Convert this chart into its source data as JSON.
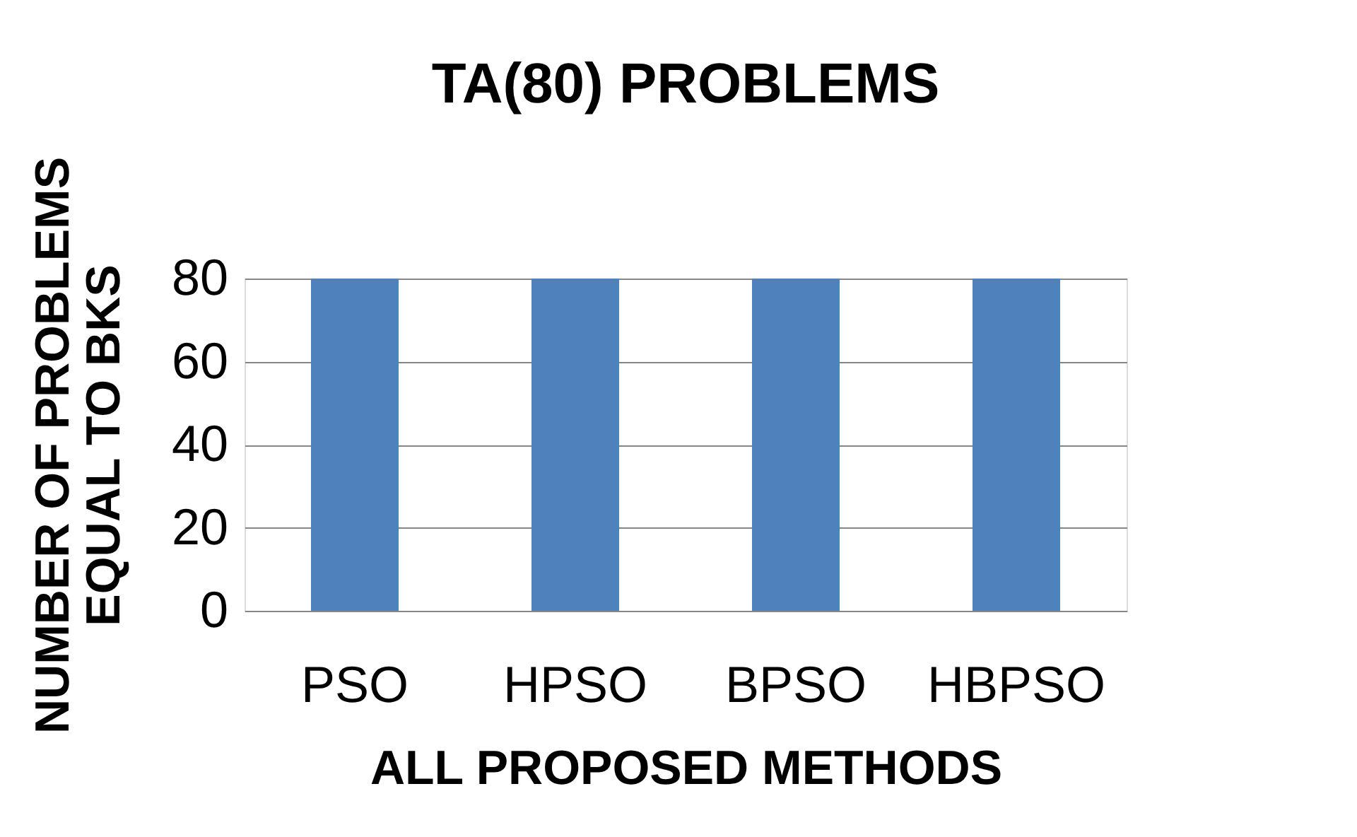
{
  "chart_data": {
    "type": "bar",
    "title": "TA(80) PROBLEMS",
    "xlabel": "ALL PROPOSED METHODS",
    "ylabel": "NUMBER OF PROBLEMS EQUAL TO BKS",
    "categories": [
      "PSO",
      "HPSO",
      "BPSO",
      "HBPSO"
    ],
    "values": [
      80,
      80,
      80,
      80
    ],
    "color": "#4f81bd",
    "ylim": [
      0,
      80
    ],
    "yticks": [
      0,
      20,
      40,
      60,
      80
    ],
    "grid": "y"
  }
}
